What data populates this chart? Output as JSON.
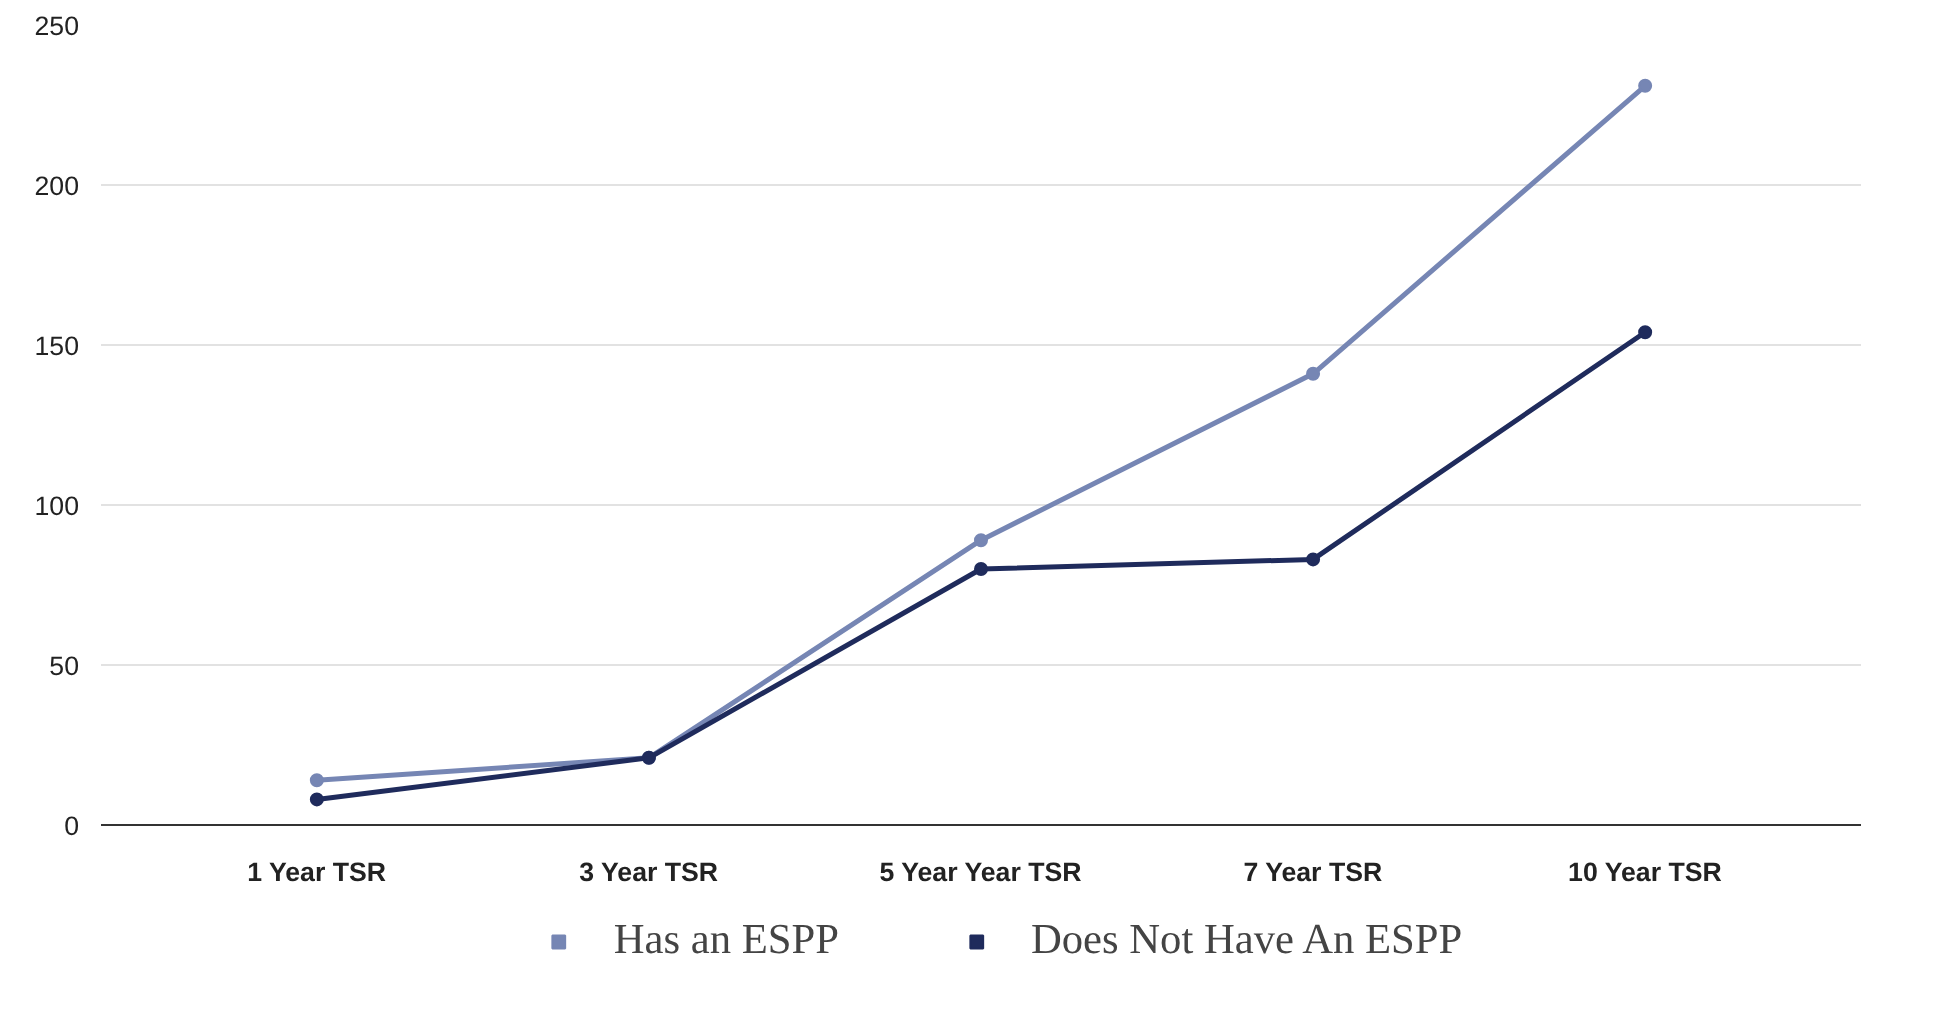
{
  "chart_data": {
    "type": "line",
    "categories": [
      "1 Year TSR",
      "3 Year TSR",
      "5 Year Year TSR",
      "7 Year TSR",
      "10 Year TSR"
    ],
    "series": [
      {
        "name": "Has an ESPP",
        "color": "#7686b4",
        "values": [
          14,
          21,
          89,
          141,
          231
        ]
      },
      {
        "name": "Does Not Have An ESPP",
        "color": "#1f2b5c",
        "values": [
          8,
          21,
          80,
          83,
          154
        ]
      }
    ],
    "ylim": [
      0,
      250
    ],
    "yticks": [
      0,
      50,
      100,
      150,
      200,
      250
    ],
    "grid": "y",
    "legend": "bottom",
    "marker": "circle"
  }
}
